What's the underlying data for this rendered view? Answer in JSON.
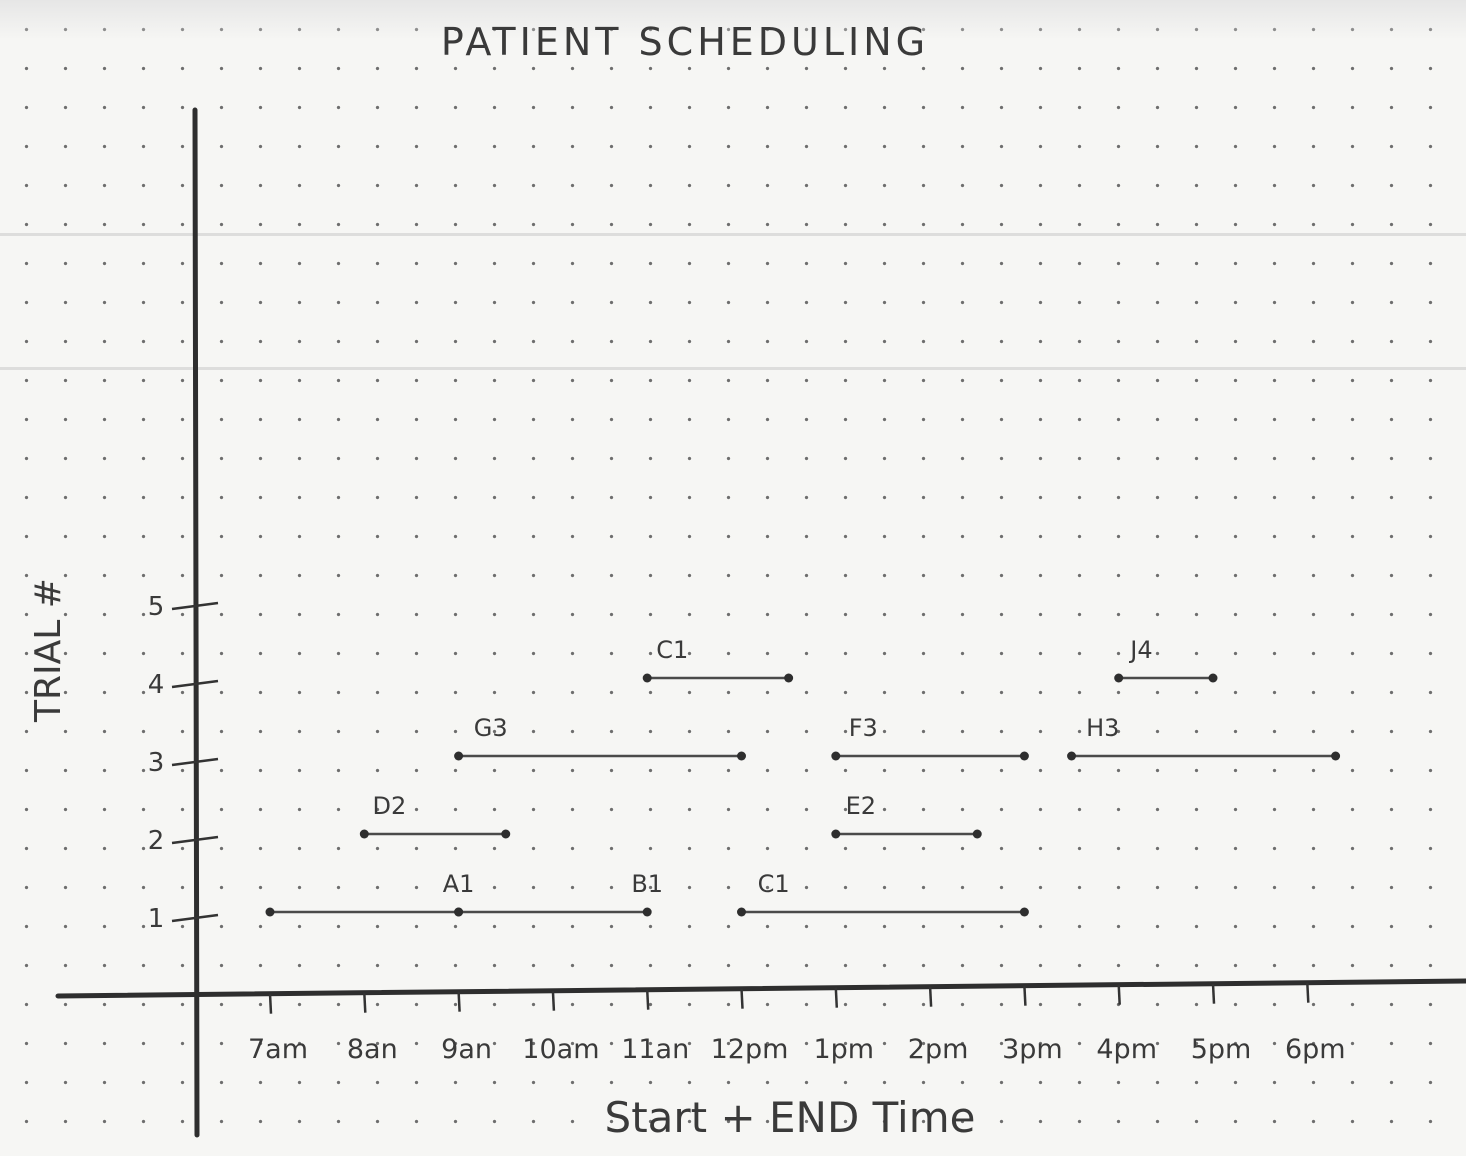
{
  "chart_data": {
    "type": "gantt",
    "title": "PATIENT SCHEDULING",
    "xlabel": "Start + END Time",
    "ylabel": "TRIAL #",
    "x_ticks": [
      "7am",
      "8am",
      "9am",
      "10am",
      "11am",
      "12pm",
      "1pm",
      "2pm",
      "3pm",
      "4pm",
      "5pm",
      "6pm"
    ],
    "x_tick_labels": [
      "7am",
      "8an",
      "9an",
      "10am",
      "11an",
      "12pm",
      "1pm",
      "2pm",
      "3pm",
      "4pm",
      "5pm",
      "6pm"
    ],
    "xlim": [
      7,
      18
    ],
    "y_ticks": [
      1,
      2,
      3,
      4,
      5
    ],
    "ylim": [
      0,
      5
    ],
    "grid": false,
    "tasks": [
      {
        "label": "A1",
        "trial": 1,
        "start": 7,
        "end": 9
      },
      {
        "label": "B1",
        "trial": 1,
        "start": 9,
        "end": 11
      },
      {
        "label": "C1",
        "trial": 1,
        "start": 12,
        "end": 15
      },
      {
        "label": "D2",
        "trial": 2,
        "start": 8,
        "end": 9.5
      },
      {
        "label": "E2",
        "trial": 2,
        "start": 13,
        "end": 14.5
      },
      {
        "label": "G3",
        "trial": 3,
        "start": 9,
        "end": 12
      },
      {
        "label": "F3",
        "trial": 3,
        "start": 13,
        "end": 15
      },
      {
        "label": "H3",
        "trial": 3,
        "start": 15.5,
        "end": 18.3
      },
      {
        "label": "C1",
        "trial": 4,
        "start": 11,
        "end": 12.5
      },
      {
        "label": "J4",
        "trial": 4,
        "start": 16,
        "end": 17
      }
    ],
    "colors": {
      "ink": "#333333",
      "paper": "#f6f6f4"
    }
  }
}
